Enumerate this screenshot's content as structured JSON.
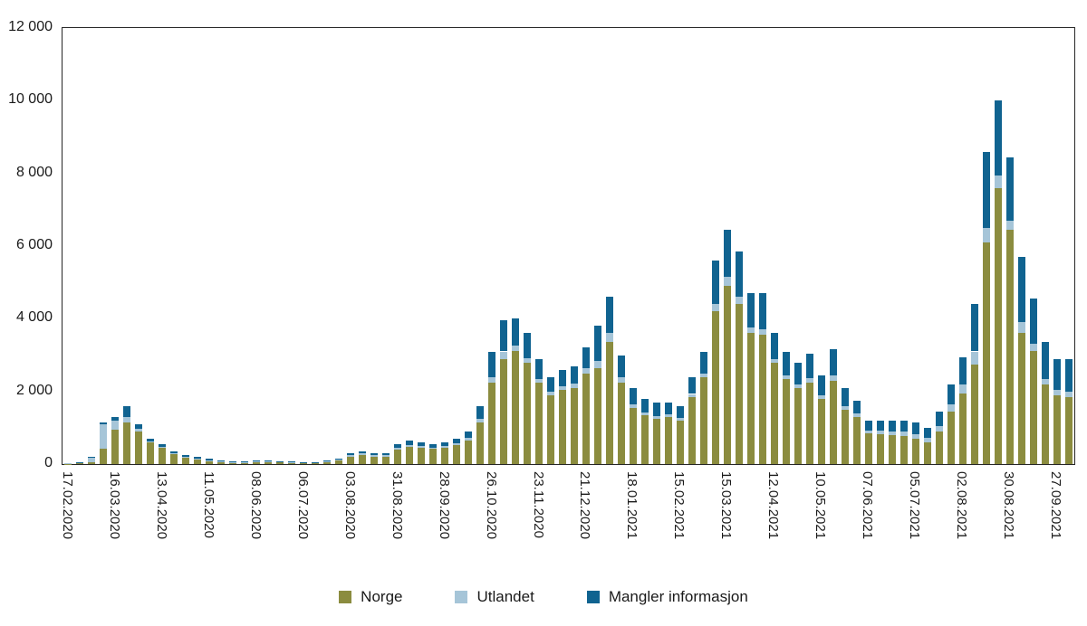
{
  "figure": {
    "background": "#ffffff",
    "axis_color": "#262626"
  },
  "chart_data": {
    "type": "bar",
    "stacked": true,
    "title": "",
    "xlabel": "",
    "ylabel": "",
    "grid": false,
    "legend_position": "bottom",
    "ylim": [
      0,
      12000
    ],
    "yticks": [
      0,
      2000,
      4000,
      6000,
      8000,
      10000,
      12000
    ],
    "ytick_labels": [
      "0",
      "2 000",
      "4 000",
      "6 000",
      "8 000",
      "10 000",
      "12 000"
    ],
    "xtick_every": 4,
    "categories": [
      "17.02.2020",
      "24.02.2020",
      "02.03.2020",
      "09.03.2020",
      "16.03.2020",
      "23.03.2020",
      "30.03.2020",
      "06.04.2020",
      "13.04.2020",
      "20.04.2020",
      "27.04.2020",
      "04.05.2020",
      "11.05.2020",
      "18.05.2020",
      "25.05.2020",
      "01.06.2020",
      "08.06.2020",
      "15.06.2020",
      "22.06.2020",
      "29.06.2020",
      "06.07.2020",
      "13.07.2020",
      "20.07.2020",
      "27.07.2020",
      "03.08.2020",
      "10.08.2020",
      "17.08.2020",
      "24.08.2020",
      "31.08.2020",
      "07.09.2020",
      "14.09.2020",
      "21.09.2020",
      "28.09.2020",
      "05.10.2020",
      "12.10.2020",
      "19.10.2020",
      "26.10.2020",
      "02.11.2020",
      "09.11.2020",
      "16.11.2020",
      "23.11.2020",
      "30.11.2020",
      "07.12.2020",
      "14.12.2020",
      "21.12.2020",
      "28.12.2020",
      "04.01.2021",
      "11.01.2021",
      "18.01.2021",
      "25.01.2021",
      "01.02.2021",
      "08.02.2021",
      "15.02.2021",
      "22.02.2021",
      "01.03.2021",
      "08.03.2021",
      "15.03.2021",
      "22.03.2021",
      "29.03.2021",
      "05.04.2021",
      "12.04.2021",
      "19.04.2021",
      "26.04.2021",
      "03.05.2021",
      "10.05.2021",
      "17.05.2021",
      "24.05.2021",
      "31.05.2021",
      "07.06.2021",
      "14.06.2021",
      "21.06.2021",
      "28.06.2021",
      "05.07.2021",
      "12.07.2021",
      "19.07.2021",
      "26.07.2021",
      "02.08.2021",
      "09.08.2021",
      "16.08.2021",
      "23.08.2021",
      "30.08.2021",
      "06.09.2021",
      "13.09.2021",
      "20.09.2021",
      "27.09.2021",
      "04.10.2021"
    ],
    "series": [
      {
        "name": "Norge",
        "color": "#8b8c3f",
        "values": [
          5,
          15,
          60,
          420,
          950,
          1150,
          900,
          600,
          450,
          280,
          200,
          150,
          100,
          70,
          50,
          50,
          70,
          70,
          60,
          50,
          40,
          40,
          60,
          100,
          200,
          240,
          200,
          210,
          400,
          480,
          450,
          420,
          450,
          520,
          650,
          1150,
          2250,
          2900,
          3100,
          2800,
          2250,
          1900,
          2050,
          2100,
          2500,
          2650,
          3350,
          2250,
          1550,
          1350,
          1250,
          1300,
          1200,
          1850,
          2400,
          4200,
          4900,
          4400,
          3600,
          3550,
          2800,
          2350,
          2100,
          2250,
          1800,
          2300,
          1500,
          1300,
          850,
          820,
          800,
          780,
          700,
          600,
          900,
          1450,
          1950,
          2750,
          6100,
          7600,
          6450,
          3600,
          3100,
          2200,
          1900,
          1850
        ]
      },
      {
        "name": "Utlandet",
        "color": "#a6c5d8",
        "values": [
          10,
          40,
          140,
          680,
          250,
          150,
          60,
          30,
          20,
          15,
          10,
          10,
          10,
          5,
          5,
          5,
          5,
          10,
          10,
          10,
          10,
          10,
          15,
          30,
          60,
          60,
          50,
          40,
          50,
          50,
          40,
          40,
          50,
          60,
          70,
          100,
          150,
          200,
          150,
          120,
          100,
          100,
          100,
          120,
          150,
          200,
          250,
          150,
          100,
          80,
          70,
          70,
          60,
          80,
          100,
          200,
          250,
          200,
          150,
          150,
          100,
          100,
          100,
          120,
          100,
          150,
          100,
          90,
          80,
          90,
          100,
          110,
          120,
          120,
          150,
          200,
          250,
          350,
          400,
          350,
          250,
          300,
          200,
          150,
          150,
          150
        ]
      },
      {
        "name": "Mangler informasjon",
        "color": "#106390",
        "values": [
          0,
          5,
          10,
          50,
          100,
          300,
          140,
          70,
          80,
          55,
          40,
          40,
          30,
          25,
          15,
          15,
          15,
          20,
          15,
          15,
          10,
          10,
          15,
          20,
          40,
          50,
          50,
          50,
          100,
          120,
          110,
          90,
          100,
          120,
          180,
          350,
          700,
          850,
          750,
          680,
          550,
          400,
          450,
          480,
          550,
          950,
          1000,
          600,
          450,
          370,
          380,
          330,
          340,
          470,
          600,
          1200,
          1300,
          1250,
          950,
          1000,
          700,
          650,
          600,
          680,
          550,
          700,
          500,
          360,
          270,
          290,
          300,
          310,
          330,
          280,
          400,
          550,
          750,
          1300,
          2100,
          2050,
          1750,
          1800,
          1250,
          1000,
          850,
          900
        ]
      }
    ]
  }
}
